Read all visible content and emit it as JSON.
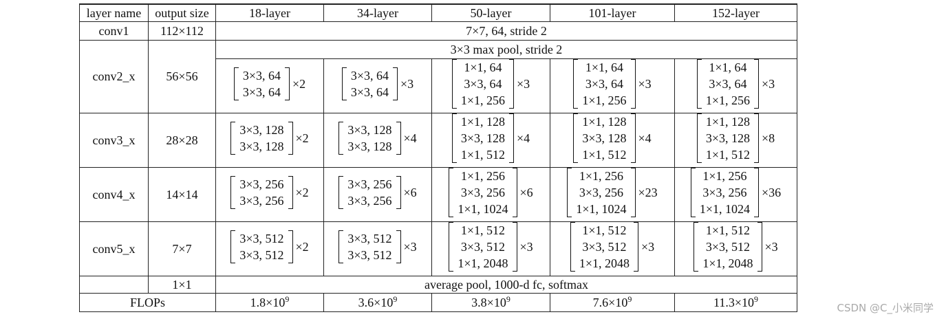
{
  "headers": [
    "layer name",
    "output size",
    "18-layer",
    "34-layer",
    "50-layer",
    "101-layer",
    "152-layer"
  ],
  "conv1": {
    "name": "conv1",
    "size": "112×112",
    "desc": "7×7, 64, stride 2"
  },
  "pool": "3×3 max pool, stride 2",
  "stages": [
    {
      "name": "conv2_x",
      "size": "56×56",
      "cells": [
        {
          "lines": [
            "3×3, 64",
            "3×3, 64"
          ],
          "mult": "×2"
        },
        {
          "lines": [
            "3×3, 64",
            "3×3, 64"
          ],
          "mult": "×3"
        },
        {
          "lines": [
            "1×1, 64",
            "3×3, 64",
            "1×1, 256"
          ],
          "mult": "×3"
        },
        {
          "lines": [
            "1×1, 64",
            "3×3, 64",
            "1×1, 256"
          ],
          "mult": "×3"
        },
        {
          "lines": [
            "1×1, 64",
            "3×3, 64",
            "1×1, 256"
          ],
          "mult": "×3"
        }
      ]
    },
    {
      "name": "conv3_x",
      "size": "28×28",
      "cells": [
        {
          "lines": [
            "3×3, 128",
            "3×3, 128"
          ],
          "mult": "×2"
        },
        {
          "lines": [
            "3×3, 128",
            "3×3, 128"
          ],
          "mult": "×4"
        },
        {
          "lines": [
            "1×1, 128",
            "3×3, 128",
            "1×1, 512"
          ],
          "mult": "×4"
        },
        {
          "lines": [
            "1×1, 128",
            "3×3, 128",
            "1×1, 512"
          ],
          "mult": "×4"
        },
        {
          "lines": [
            "1×1, 128",
            "3×3, 128",
            "1×1, 512"
          ],
          "mult": "×8"
        }
      ]
    },
    {
      "name": "conv4_x",
      "size": "14×14",
      "cells": [
        {
          "lines": [
            "3×3, 256",
            "3×3, 256"
          ],
          "mult": "×2"
        },
        {
          "lines": [
            "3×3, 256",
            "3×3, 256"
          ],
          "mult": "×6"
        },
        {
          "lines": [
            "1×1, 256",
            "3×3, 256",
            "1×1, 1024"
          ],
          "mult": "×6"
        },
        {
          "lines": [
            "1×1, 256",
            "3×3, 256",
            "1×1, 1024"
          ],
          "mult": "×23"
        },
        {
          "lines": [
            "1×1, 256",
            "3×3, 256",
            "1×1, 1024"
          ],
          "mult": "×36"
        }
      ]
    },
    {
      "name": "conv5_x",
      "size": "7×7",
      "cells": [
        {
          "lines": [
            "3×3, 512",
            "3×3, 512"
          ],
          "mult": "×2"
        },
        {
          "lines": [
            "3×3, 512",
            "3×3, 512"
          ],
          "mult": "×3"
        },
        {
          "lines": [
            "1×1, 512",
            "3×3, 512",
            "1×1, 2048"
          ],
          "mult": "×3"
        },
        {
          "lines": [
            "1×1, 512",
            "3×3, 512",
            "1×1, 2048"
          ],
          "mult": "×3"
        },
        {
          "lines": [
            "1×1, 512",
            "3×3, 512",
            "1×1, 2048"
          ],
          "mult": "×3"
        }
      ]
    }
  ],
  "final": {
    "size": "1×1",
    "desc": "average pool, 1000-d fc, softmax"
  },
  "flops": {
    "label": "FLOPs",
    "base": "×10",
    "exp": "9",
    "values": [
      "1.8",
      "3.6",
      "3.8",
      "7.6",
      "11.3"
    ]
  },
  "watermark": "CSDN @C_小米同学"
}
